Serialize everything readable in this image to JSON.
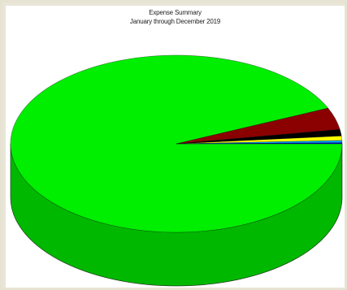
{
  "chart_data": {
    "type": "pie",
    "style": "3d",
    "title": "Expense Summary",
    "subtitle": "January through December 2019",
    "legend": "none",
    "slices": [
      {
        "value": 93.4,
        "color": "#00ee00",
        "side_color": "#00b800"
      },
      {
        "value": 4.0,
        "color": "#8b0000",
        "side_color": "#5c0000"
      },
      {
        "value": 1.2,
        "color": "#000000",
        "side_color": "#000000"
      },
      {
        "value": 0.8,
        "color": "#ffff00",
        "side_color": "#c8c800"
      },
      {
        "value": 0.4,
        "color": "#00aaff",
        "side_color": "#0077bb"
      },
      {
        "value": 0.2,
        "color": "#0000cc",
        "side_color": "#000088"
      }
    ]
  }
}
